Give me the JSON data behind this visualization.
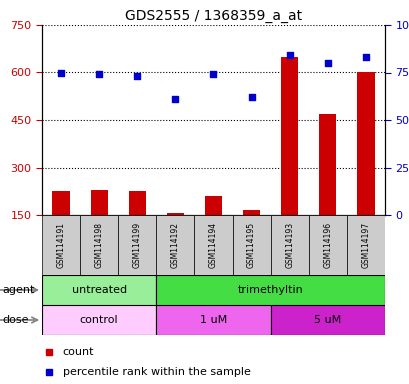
{
  "title": "GDS2555 / 1368359_a_at",
  "samples": [
    "GSM114191",
    "GSM114198",
    "GSM114199",
    "GSM114192",
    "GSM114194",
    "GSM114195",
    "GSM114193",
    "GSM114196",
    "GSM114197"
  ],
  "bar_values": [
    225,
    228,
    225,
    155,
    210,
    165,
    650,
    468,
    600
  ],
  "dot_values": [
    75,
    74,
    73,
    61,
    74,
    62,
    84,
    80,
    83
  ],
  "ylim_left": [
    150,
    750
  ],
  "ylim_right": [
    0,
    100
  ],
  "yticks_left": [
    150,
    300,
    450,
    600,
    750
  ],
  "yticks_right": [
    0,
    25,
    50,
    75,
    100
  ],
  "bar_color": "#cc0000",
  "dot_color": "#0000cc",
  "agent_groups": [
    {
      "label": "untreated",
      "start": 0,
      "end": 3,
      "color": "#99ee99"
    },
    {
      "label": "trimethyltin",
      "start": 3,
      "end": 9,
      "color": "#44dd44"
    }
  ],
  "dose_groups": [
    {
      "label": "control",
      "start": 0,
      "end": 3,
      "color": "#ffccff"
    },
    {
      "label": "1 uM",
      "start": 3,
      "end": 6,
      "color": "#ee66ee"
    },
    {
      "label": "5 uM",
      "start": 6,
      "end": 9,
      "color": "#cc22cc"
    }
  ],
  "legend_count_color": "#cc0000",
  "legend_dot_color": "#0000cc",
  "label_agent": "agent",
  "label_dose": "dose",
  "tick_bg_color": "#cccccc",
  "grid_linestyle": "dotted",
  "grid_color": "black",
  "grid_linewidth": 0.8
}
